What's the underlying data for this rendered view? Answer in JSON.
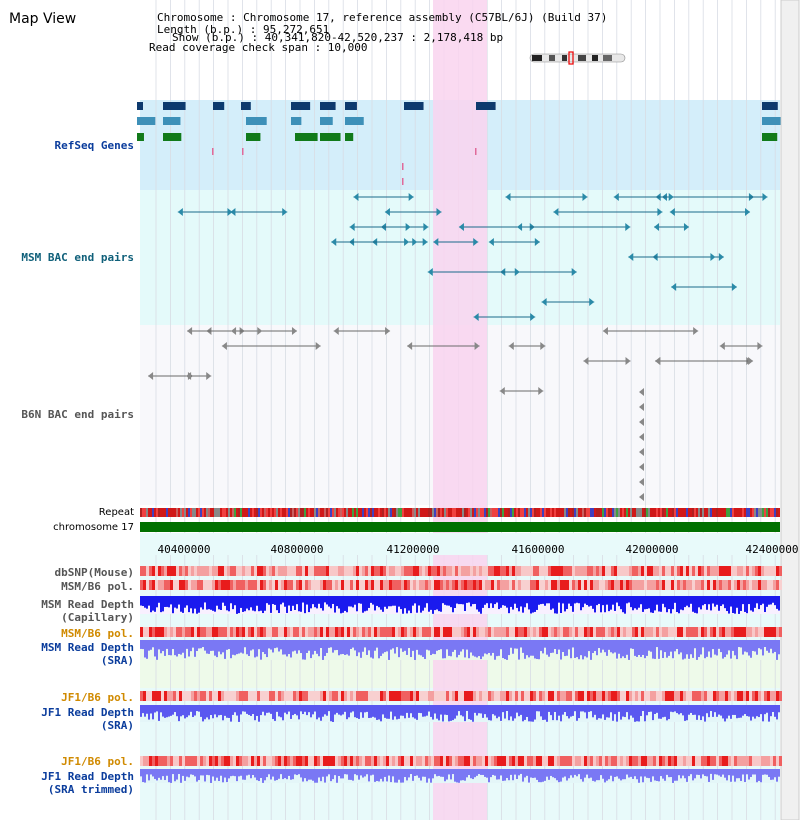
{
  "header": {
    "title": "Map View",
    "info_lines": [
      "Chromosome     : Chromosome 17, reference assembly (C57BL/6J) (Build 37)",
      "Length (b.p.) : 95,272,651",
      "Show (b.p.) : 40,341,820-42,520,237 : 2,178,418 bp",
      "Read coverage check span : 10,000"
    ]
  },
  "track_labels": {
    "refseq": "RefSeq Genes",
    "msm_bac": "MSM BAC end pairs",
    "b6n_bac": "B6N BAC end pairs",
    "repeat": "Repeat",
    "chromosome": "chromosome 17",
    "dbsnp": "dbSNP(Mouse)",
    "msm_b6_pol_1": "MSM/B6 pol.",
    "msm_read_depth_cap_1": "MSM Read Depth",
    "msm_read_depth_cap_2": "(Capillary)",
    "msm_b6_pol_2": "MSM/B6 pol.",
    "msm_read_depth_sra_1": "MSM Read Depth",
    "msm_read_depth_sra_2": "(SRA)",
    "jf1_b6_pol_1": "JF1/B6 pol.",
    "jf1_read_depth_sra_1": "JF1 Read Depth",
    "jf1_read_depth_sra_2": "(SRA)",
    "jf1_b6_pol_2": "JF1/B6 pol.",
    "jf1_read_depth_trim_1": "JF1 Read Depth",
    "jf1_read_depth_trim_2": "(SRA trimmed)"
  },
  "ruler_ticks": [
    "40400000",
    "40800000",
    "41200000",
    "41600000",
    "42000000",
    "42400000"
  ],
  "colors": {
    "refseq_bg": "#d4eefa",
    "msm_bac_bg": "#e4fafa",
    "highlight": "#f9d4ee",
    "chromosome_bar": "#007000",
    "label_blue": "#0a3c9c",
    "label_teal": "#10607a",
    "label_orange": "#d08a00",
    "depth_blue": "#1a1aee",
    "depth_light": "#7a78f4"
  },
  "icons": [
    "chromosome-ideogram-icon"
  ]
}
